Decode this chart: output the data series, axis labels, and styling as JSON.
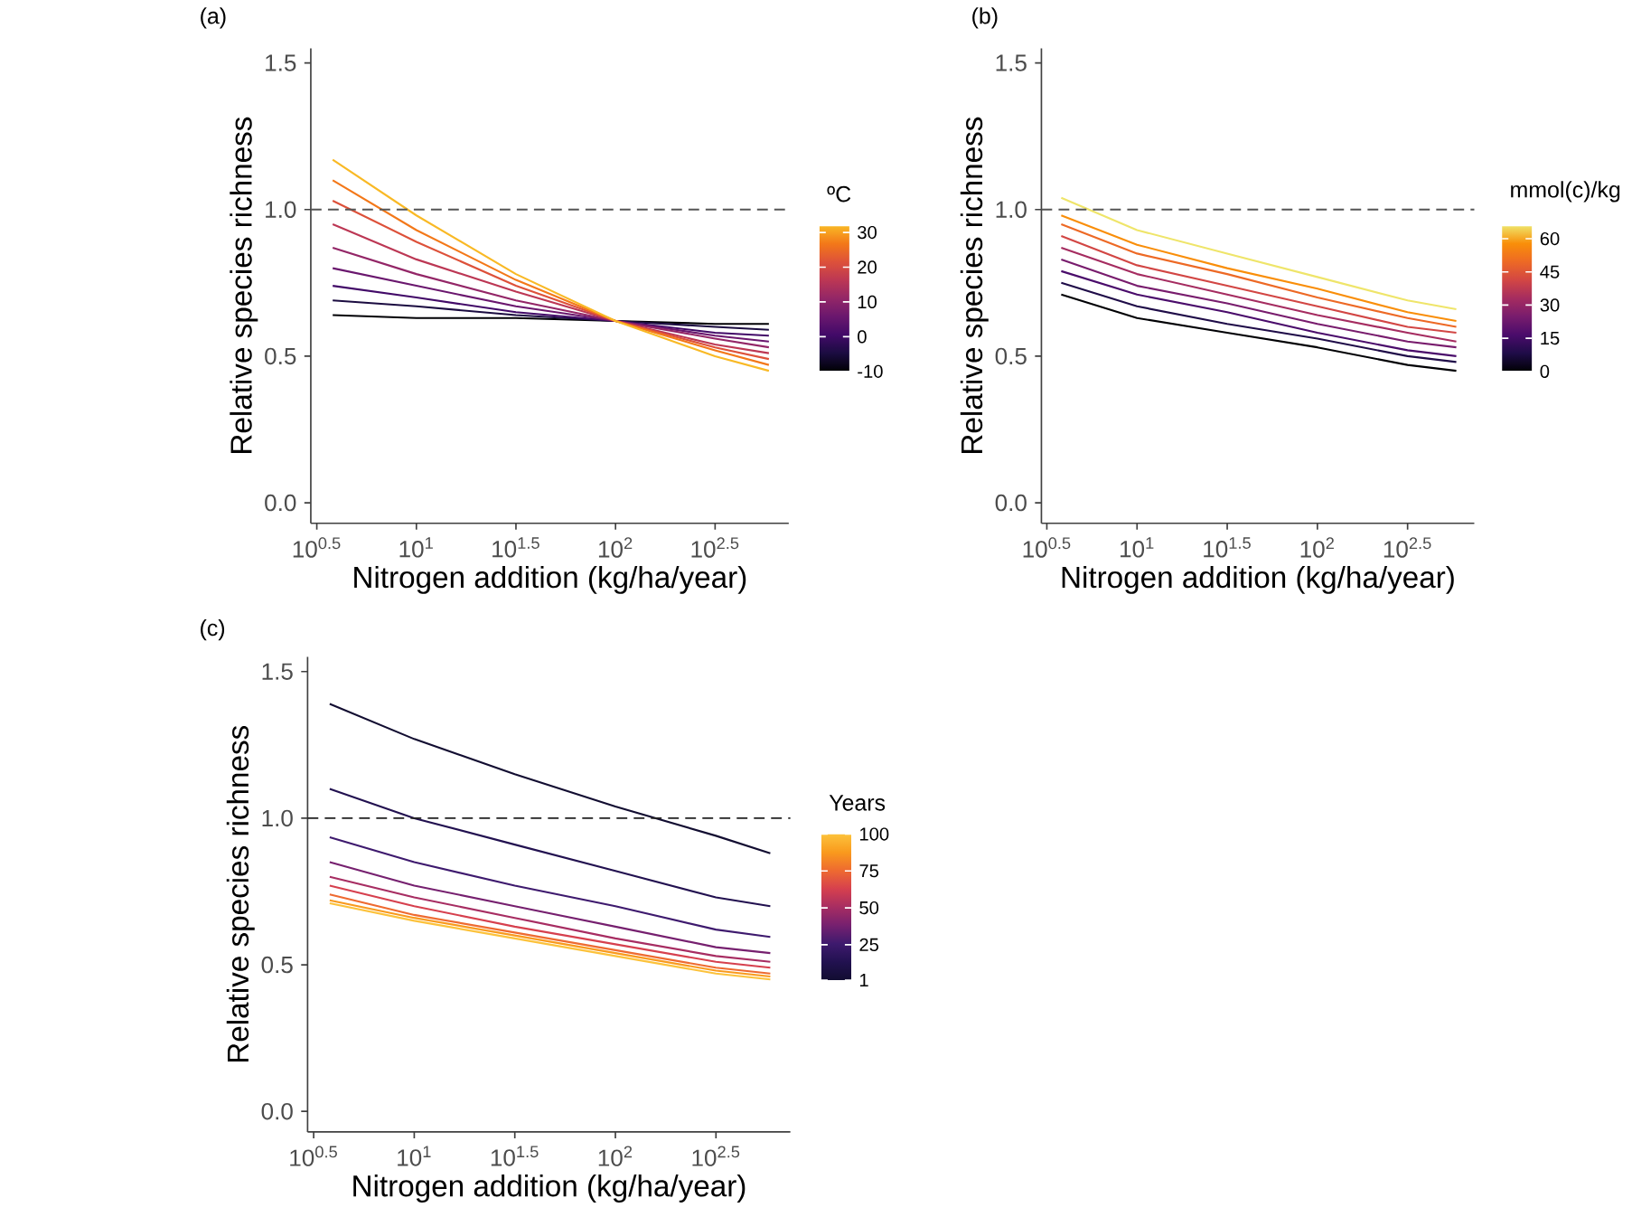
{
  "chart_data": [
    {
      "type": "line",
      "title": "(a)",
      "xlabel": "Nitrogen addition (kg/ha/year)",
      "ylabel": "Relative species richness",
      "clabel": "ºC",
      "log": "x",
      "x": [
        3.8,
        10,
        31.6,
        100,
        316,
        589
      ],
      "xlim": [
        2.95,
        741
      ],
      "xticks": [
        {
          "value": 3.162,
          "label": "10$^{0.5}$"
        },
        {
          "value": 10,
          "label": "10$^{1}$"
        },
        {
          "value": 31.62,
          "label": "10$^{1.5}$"
        },
        {
          "value": 100,
          "label": "10$^{2}$"
        },
        {
          "value": 316.2,
          "label": "10$^{2.5}$"
        }
      ],
      "ylim": [
        -0.07,
        1.55
      ],
      "yticks": [
        {
          "value": 0,
          "label": "0.0"
        },
        {
          "value": 0.5,
          "label": "0.5"
        },
        {
          "value": 1,
          "label": "1.0"
        },
        {
          "value": 1.5,
          "label": "1.5"
        }
      ],
      "clim": [
        -10,
        32
      ],
      "cticks": [
        -10,
        0,
        10,
        20,
        30
      ],
      "ref_lines": [
        {
          "axis": "y",
          "value": 1,
          "color": "#555555",
          "line_style": "dashed"
        }
      ],
      "series": [
        {
          "color": "#000004",
          "values": [
            0.64,
            0.63,
            0.63,
            0.62,
            0.61,
            0.61
          ]
        },
        {
          "color": "#1b0c41",
          "values": [
            0.69,
            0.67,
            0.64,
            0.62,
            0.6,
            0.59
          ]
        },
        {
          "color": "#420a68",
          "values": [
            0.74,
            0.7,
            0.65,
            0.62,
            0.58,
            0.57
          ]
        },
        {
          "color": "#6a176e",
          "values": [
            0.8,
            0.74,
            0.67,
            0.62,
            0.57,
            0.55
          ]
        },
        {
          "color": "#932667",
          "values": [
            0.87,
            0.78,
            0.69,
            0.62,
            0.56,
            0.53
          ]
        },
        {
          "color": "#bc3754",
          "values": [
            0.95,
            0.83,
            0.72,
            0.62,
            0.54,
            0.51
          ]
        },
        {
          "color": "#dd513a",
          "values": [
            1.03,
            0.89,
            0.74,
            0.62,
            0.53,
            0.49
          ]
        },
        {
          "color": "#f37819",
          "values": [
            1.1,
            0.93,
            0.76,
            0.62,
            0.52,
            0.47
          ]
        },
        {
          "color": "#f9b925",
          "values": [
            1.17,
            0.98,
            0.78,
            0.62,
            0.5,
            0.45
          ]
        }
      ]
    },
    {
      "type": "line",
      "title": "(b)",
      "xlabel": "Nitrogen addition (kg/ha/year)",
      "ylabel": "Relative species richness",
      "clabel": "mmol(c)/kg",
      "log": "x",
      "x": [
        3.8,
        10,
        31.6,
        100,
        316,
        589
      ],
      "xlim": [
        2.95,
        741
      ],
      "xticks": [
        {
          "value": 3.162,
          "label": "10$^{0.5}$"
        },
        {
          "value": 10,
          "label": "10$^{1}$"
        },
        {
          "value": 31.62,
          "label": "10$^{1.5}$"
        },
        {
          "value": 100,
          "label": "10$^{2}$"
        },
        {
          "value": 316.2,
          "label": "10$^{2.5}$"
        }
      ],
      "ylim": [
        -0.07,
        1.55
      ],
      "yticks": [
        {
          "value": 0,
          "label": "0.0"
        },
        {
          "value": 0.5,
          "label": "0.5"
        },
        {
          "value": 1,
          "label": "1.0"
        },
        {
          "value": 1.5,
          "label": "1.5"
        }
      ],
      "clim": [
        0,
        66
      ],
      "cticks": [
        0,
        15,
        30,
        45,
        60
      ],
      "ref_lines": [
        {
          "axis": "y",
          "value": 1,
          "color": "#555555",
          "line_style": "dashed"
        }
      ],
      "series": [
        {
          "color": "#000004",
          "values": [
            0.71,
            0.63,
            0.58,
            0.53,
            0.47,
            0.45
          ]
        },
        {
          "color": "#1f0c48",
          "values": [
            0.75,
            0.67,
            0.61,
            0.56,
            0.5,
            0.48
          ]
        },
        {
          "color": "#4a0c6b",
          "values": [
            0.79,
            0.71,
            0.65,
            0.58,
            0.52,
            0.5
          ]
        },
        {
          "color": "#781c6d",
          "values": [
            0.83,
            0.74,
            0.68,
            0.61,
            0.55,
            0.53
          ]
        },
        {
          "color": "#a52c60",
          "values": [
            0.87,
            0.78,
            0.71,
            0.64,
            0.58,
            0.55
          ]
        },
        {
          "color": "#d24644",
          "values": [
            0.91,
            0.81,
            0.74,
            0.67,
            0.6,
            0.58
          ]
        },
        {
          "color": "#ed6925",
          "values": [
            0.95,
            0.85,
            0.78,
            0.7,
            0.63,
            0.6
          ]
        },
        {
          "color": "#f98e09",
          "values": [
            0.98,
            0.88,
            0.8,
            0.73,
            0.65,
            0.62
          ]
        },
        {
          "color": "#efe56a",
          "values": [
            1.04,
            0.93,
            0.85,
            0.77,
            0.69,
            0.66
          ]
        }
      ]
    },
    {
      "type": "line",
      "title": "(c)",
      "xlabel": "Nitrogen addition (kg/ha/year)",
      "ylabel": "Relative species richness",
      "clabel": "Years",
      "log": "x",
      "x": [
        3.8,
        10,
        31.6,
        100,
        316,
        589
      ],
      "xlim": [
        2.95,
        741
      ],
      "xticks": [
        {
          "value": 3.162,
          "label": "10$^{0.5}$"
        },
        {
          "value": 10,
          "label": "10$^{1}$"
        },
        {
          "value": 31.62,
          "label": "10$^{1.5}$"
        },
        {
          "value": 100,
          "label": "10$^{2}$"
        },
        {
          "value": 316.2,
          "label": "10$^{2.5}$"
        }
      ],
      "ylim": [
        -0.07,
        1.55
      ],
      "yticks": [
        {
          "value": 0,
          "label": "0.0"
        },
        {
          "value": 0.5,
          "label": "0.5"
        },
        {
          "value": 1,
          "label": "1.0"
        },
        {
          "value": 1.5,
          "label": "1.5"
        }
      ],
      "clim": [
        1,
        100
      ],
      "cticks": [
        1,
        25,
        50,
        75,
        100
      ],
      "ref_lines": [
        {
          "axis": "y",
          "value": 1,
          "color": "#222222",
          "line_style": "dashed"
        }
      ],
      "series": [
        {
          "color": "#120d31",
          "values": [
            1.39,
            1.27,
            1.15,
            1.04,
            0.94,
            0.88
          ]
        },
        {
          "color": "#221150",
          "values": [
            1.1,
            1.0,
            0.91,
            0.82,
            0.73,
            0.7
          ]
        },
        {
          "color": "#3e1a6e",
          "values": [
            0.935,
            0.85,
            0.77,
            0.7,
            0.62,
            0.595
          ]
        },
        {
          "color": "#76206f",
          "values": [
            0.85,
            0.77,
            0.7,
            0.63,
            0.56,
            0.54
          ]
        },
        {
          "color": "#a72d62",
          "values": [
            0.8,
            0.73,
            0.66,
            0.59,
            0.53,
            0.51
          ]
        },
        {
          "color": "#d6404e",
          "values": [
            0.77,
            0.7,
            0.63,
            0.57,
            0.51,
            0.49
          ]
        },
        {
          "color": "#ee6a30",
          "values": [
            0.74,
            0.67,
            0.61,
            0.55,
            0.49,
            0.47
          ]
        },
        {
          "color": "#f99a1d",
          "values": [
            0.72,
            0.66,
            0.6,
            0.54,
            0.48,
            0.46
          ]
        },
        {
          "color": "#fcc23b",
          "values": [
            0.71,
            0.65,
            0.59,
            0.53,
            0.47,
            0.45
          ]
        }
      ]
    }
  ]
}
